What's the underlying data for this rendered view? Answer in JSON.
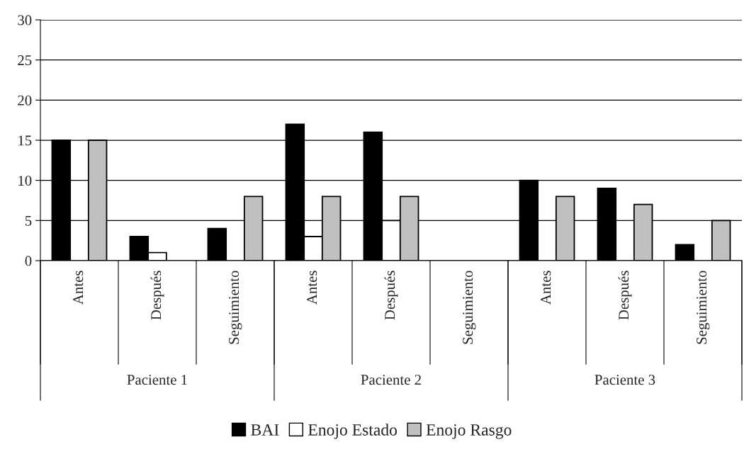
{
  "chart_data": {
    "type": "bar",
    "categories": [
      "Antes",
      "Después",
      "Seguimiento",
      "Antes",
      "Después",
      "Seguimiento",
      "Antes",
      "Después",
      "Seguimiento"
    ],
    "series": [
      {
        "name": "BAI",
        "color": "#000000",
        "values": [
          15,
          3,
          4,
          17,
          16,
          null,
          10,
          9,
          2
        ]
      },
      {
        "name": "Enojo Estado",
        "color": "#ffffff",
        "values": [
          null,
          1,
          null,
          3,
          5,
          null,
          null,
          null,
          null
        ]
      },
      {
        "name": "Enojo Rasgo",
        "color": "#c0c0c0",
        "values": [
          15,
          null,
          8,
          8,
          8,
          null,
          8,
          7,
          5
        ]
      }
    ],
    "annotations": [
      "Paciente 1",
      "Paciente 2",
      "Paciente 3"
    ],
    "ylim": [
      0,
      30
    ],
    "yticks": [
      0,
      5,
      10,
      15,
      20,
      25,
      30
    ],
    "grid": "y",
    "legend": "bottom"
  }
}
